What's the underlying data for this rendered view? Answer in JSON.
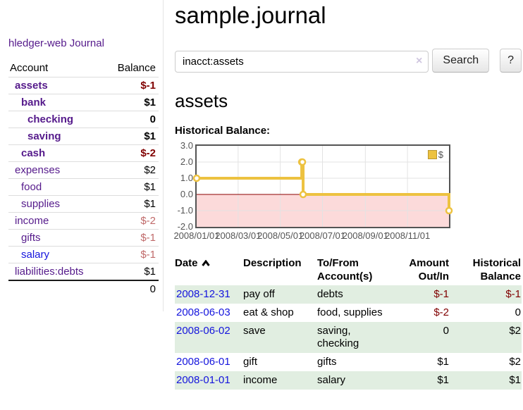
{
  "sidebar": {
    "brand": "hledger-web",
    "nav": [
      {
        "label": "Journal"
      }
    ],
    "header": {
      "account": "Account",
      "balance": "Balance"
    },
    "accounts": [
      {
        "name": "assets",
        "balance": "$-1",
        "depth": 1,
        "bold": true,
        "neg": true,
        "link_color": "purple"
      },
      {
        "name": "bank",
        "balance": "$1",
        "depth": 2,
        "bold": true,
        "neg": false,
        "link_color": "purple"
      },
      {
        "name": "checking",
        "balance": "0",
        "depth": 3,
        "bold": true,
        "neg": false,
        "link_color": "purple"
      },
      {
        "name": "saving",
        "balance": "$1",
        "depth": 3,
        "bold": true,
        "neg": false,
        "link_color": "purple"
      },
      {
        "name": "cash",
        "balance": "$-2",
        "depth": 2,
        "bold": true,
        "neg": true,
        "link_color": "purple"
      },
      {
        "name": "expenses",
        "balance": "$2",
        "depth": 1,
        "bold": false,
        "neg": false,
        "link_color": "purple"
      },
      {
        "name": "food",
        "balance": "$1",
        "depth": 2,
        "bold": false,
        "neg": false,
        "link_color": "purple"
      },
      {
        "name": "supplies",
        "balance": "$1",
        "depth": 2,
        "bold": false,
        "neg": false,
        "link_color": "purple"
      },
      {
        "name": "income",
        "balance": "$-2",
        "depth": 1,
        "bold": false,
        "neg": true,
        "link_color": "purple"
      },
      {
        "name": "gifts",
        "balance": "$-1",
        "depth": 2,
        "bold": false,
        "neg": true,
        "link_color": "purple"
      },
      {
        "name": "salary",
        "balance": "$-1",
        "depth": 2,
        "bold": false,
        "neg": true,
        "link_color": "blue"
      },
      {
        "name": "liabilities:debts",
        "balance": "$1",
        "depth": 1,
        "bold": false,
        "neg": false,
        "link_color": "purple"
      }
    ],
    "total": "0"
  },
  "main": {
    "title": "sample.journal",
    "search": {
      "value": "inacct:assets",
      "clear": "×",
      "button": "Search",
      "help": "?"
    },
    "account_heading": "assets",
    "chart_title": "Historical Balance:"
  },
  "chart_data": {
    "type": "line",
    "step": true,
    "title": "Historical Balance:",
    "series": [
      {
        "name": "$",
        "color": "#edc240",
        "points": [
          {
            "date": "2008-01-01",
            "value": 1
          },
          {
            "date": "2008-06-01",
            "value": 2
          },
          {
            "date": "2008-06-02",
            "value": 2
          },
          {
            "date": "2008-06-03",
            "value": 0
          },
          {
            "date": "2008-12-31",
            "value": -1
          }
        ]
      }
    ],
    "x_ticks": [
      {
        "label": "2008/01/01",
        "date": "2008-01-01"
      },
      {
        "label": "2008/03/01",
        "date": "2008-03-01"
      },
      {
        "label": "2008/05/01",
        "date": "2008-05-01"
      },
      {
        "label": "2008/07/01",
        "date": "2008-07-01"
      },
      {
        "label": "2008/09/01",
        "date": "2008-09-01"
      },
      {
        "label": "2008/11/01",
        "date": "2008-11-01"
      }
    ],
    "y_ticks": [
      {
        "label": "3.0",
        "value": 3
      },
      {
        "label": "2.0",
        "value": 2
      },
      {
        "label": "1.0",
        "value": 1
      },
      {
        "label": "0.0",
        "value": 0
      },
      {
        "label": "-1.0",
        "value": -1
      },
      {
        "label": "-2.0",
        "value": -2
      }
    ],
    "ylim": [
      -2,
      3
    ],
    "xlim": [
      "2008-01-01",
      "2008-12-31"
    ],
    "grid": true,
    "legend": {
      "label": "$",
      "position": "top-right"
    },
    "colors": {
      "line": "#edc240",
      "negative_region": "#fcdada",
      "zero_line": "#8b0000",
      "grid": "#e3e3e3",
      "border": "#545454"
    }
  },
  "register": {
    "columns": [
      {
        "label": "Date",
        "sorted": "asc",
        "align": "left"
      },
      {
        "label": "Description",
        "align": "left"
      },
      {
        "label": "To/From Account(s)",
        "align": "left"
      },
      {
        "label": "Amount Out/In",
        "align": "right"
      },
      {
        "label": "Historical Balance",
        "align": "right"
      }
    ],
    "rows": [
      {
        "date": "2008-12-31",
        "description": "pay off",
        "accounts": "debts",
        "amount": "$-1",
        "amount_neg": true,
        "balance": "$-1",
        "balance_neg": true
      },
      {
        "date": "2008-06-03",
        "description": "eat & shop",
        "accounts": "food, supplies",
        "amount": "$-2",
        "amount_neg": true,
        "balance": "0",
        "balance_neg": false
      },
      {
        "date": "2008-06-02",
        "description": "save",
        "accounts": "saving, checking",
        "amount": "0",
        "amount_neg": false,
        "balance": "$2",
        "balance_neg": false
      },
      {
        "date": "2008-06-01",
        "description": "gift",
        "accounts": "gifts",
        "amount": "$1",
        "amount_neg": false,
        "balance": "$2",
        "balance_neg": false
      },
      {
        "date": "2008-01-01",
        "description": "income",
        "accounts": "salary",
        "amount": "$1",
        "amount_neg": false,
        "balance": "$1",
        "balance_neg": false
      }
    ]
  }
}
